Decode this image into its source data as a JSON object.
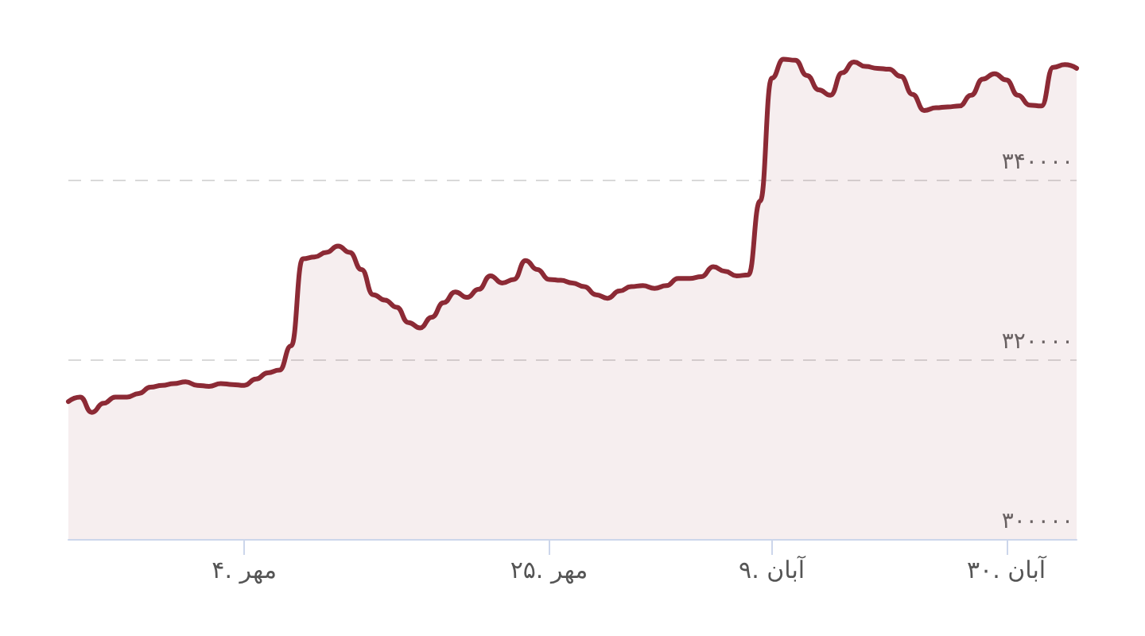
{
  "chart_data": {
    "type": "area",
    "categories": [
      null,
      null,
      null,
      null,
      null,
      null,
      null,
      null,
      null,
      null,
      null,
      null,
      null,
      null,
      null,
      "۴. مهر",
      null,
      null,
      null,
      null,
      null,
      null,
      null,
      null,
      null,
      null,
      null,
      null,
      null,
      null,
      null,
      null,
      null,
      null,
      null,
      null,
      null,
      null,
      null,
      null,
      null,
      "۲۵. مهر",
      null,
      null,
      null,
      null,
      null,
      null,
      null,
      null,
      null,
      null,
      null,
      null,
      null,
      null,
      null,
      null,
      null,
      null,
      "۹. آبان",
      null,
      null,
      null,
      null,
      null,
      null,
      null,
      null,
      null,
      null,
      null,
      null,
      null,
      null,
      null,
      null,
      null,
      null,
      null,
      "۳۰. آبان",
      null,
      null,
      null,
      null,
      null,
      null
    ],
    "series": [
      {
        "color": "#8c2a35",
        "values": [
          315300,
          315800,
          314100,
          315100,
          315800,
          315800,
          316200,
          316900,
          317100,
          317300,
          317500,
          317100,
          317000,
          317300,
          317200,
          317100,
          317800,
          318500,
          318800,
          321500,
          331200,
          331400,
          331900,
          332600,
          331900,
          330000,
          327200,
          326600,
          325800,
          324100,
          323500,
          324700,
          326300,
          327500,
          326900,
          327800,
          329300,
          328500,
          328900,
          331000,
          330000,
          328900,
          328800,
          328500,
          328100,
          327200,
          326800,
          327600,
          328100,
          328200,
          327900,
          328200,
          329000,
          329000,
          329200,
          330300,
          329800,
          329300,
          329400,
          337600,
          351300,
          353400,
          353300,
          351600,
          350000,
          349400,
          351900,
          353100,
          352600,
          352400,
          352300,
          351500,
          349500,
          347700,
          348000,
          348100,
          348200,
          349400,
          351200,
          351800,
          351100,
          349400,
          348300,
          348200,
          352500,
          352800,
          352400
        ]
      }
    ],
    "ylim": [
      300000,
      360000
    ],
    "yticks": [
      {
        "value": 300000,
        "label": "۳۰۰۰۰۰"
      },
      {
        "value": 320000,
        "label": "۳۲۰۰۰۰"
      },
      {
        "value": 340000,
        "label": "۳۴۰۰۰۰"
      }
    ],
    "grid": "y",
    "marker": "none",
    "line_style": "solid"
  }
}
